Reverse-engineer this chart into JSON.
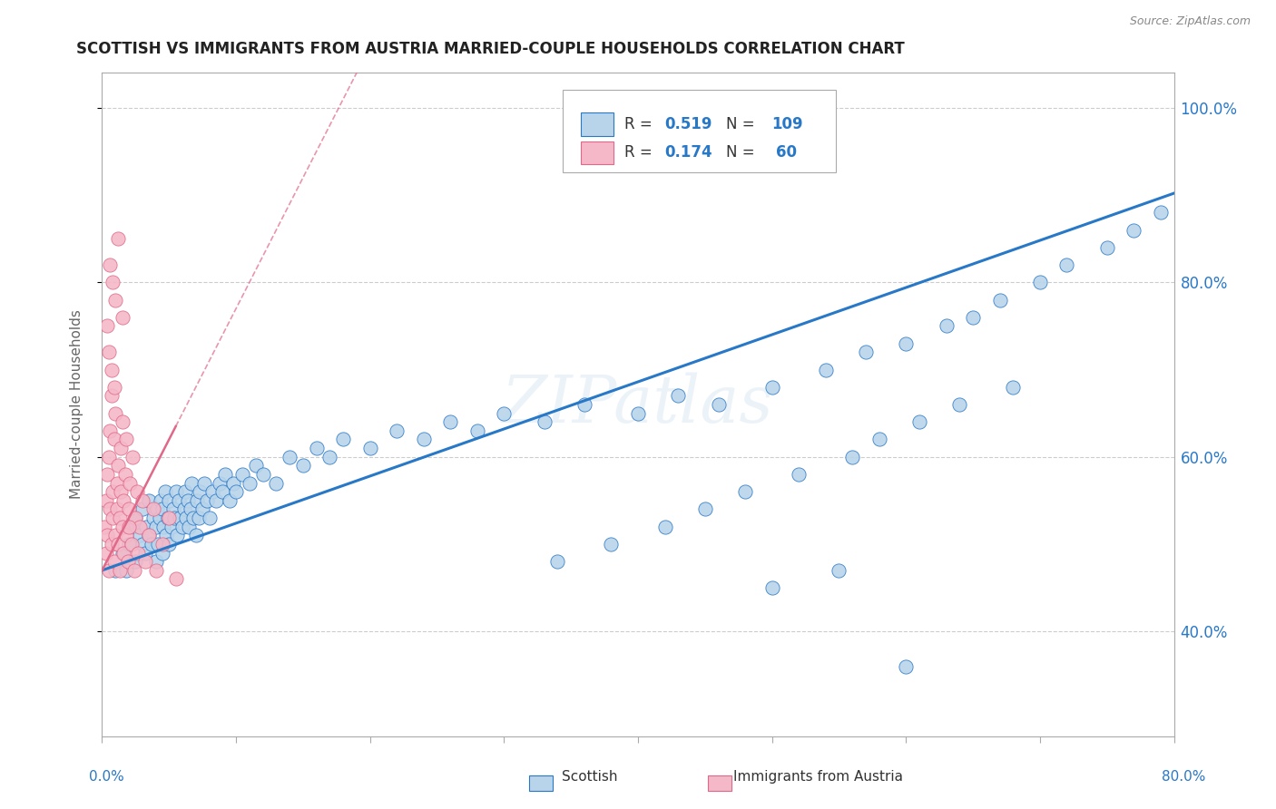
{
  "title": "SCOTTISH VS IMMIGRANTS FROM AUSTRIA MARRIED-COUPLE HOUSEHOLDS CORRELATION CHART",
  "source": "Source: ZipAtlas.com",
  "ylabel": "Married-couple Households",
  "watermark": "ZIPatlas",
  "scatter_blue_color": "#b8d4ea",
  "scatter_pink_color": "#f4b8c8",
  "line_blue_color": "#2878c8",
  "line_pink_color": "#e06888",
  "background_color": "#ffffff",
  "xlim": [
    0.0,
    0.8
  ],
  "ylim": [
    0.28,
    1.04
  ],
  "ytick_vals": [
    0.4,
    0.6,
    0.8,
    1.0
  ],
  "blue_scatter_x": [
    0.01,
    0.015,
    0.018,
    0.02,
    0.022,
    0.025,
    0.025,
    0.028,
    0.03,
    0.03,
    0.032,
    0.033,
    0.035,
    0.035,
    0.037,
    0.038,
    0.04,
    0.04,
    0.041,
    0.042,
    0.043,
    0.044,
    0.045,
    0.045,
    0.046,
    0.047,
    0.048,
    0.049,
    0.05,
    0.05,
    0.052,
    0.053,
    0.054,
    0.055,
    0.056,
    0.057,
    0.058,
    0.06,
    0.061,
    0.062,
    0.063,
    0.064,
    0.065,
    0.066,
    0.067,
    0.068,
    0.07,
    0.071,
    0.072,
    0.073,
    0.075,
    0.076,
    0.078,
    0.08,
    0.082,
    0.085,
    0.088,
    0.09,
    0.092,
    0.095,
    0.098,
    0.1,
    0.105,
    0.11,
    0.115,
    0.12,
    0.13,
    0.14,
    0.15,
    0.16,
    0.17,
    0.18,
    0.2,
    0.22,
    0.24,
    0.26,
    0.28,
    0.3,
    0.33,
    0.36,
    0.4,
    0.43,
    0.46,
    0.5,
    0.54,
    0.57,
    0.6,
    0.63,
    0.65,
    0.67,
    0.34,
    0.38,
    0.42,
    0.45,
    0.48,
    0.52,
    0.56,
    0.58,
    0.61,
    0.64,
    0.68,
    0.7,
    0.72,
    0.75,
    0.77,
    0.79,
    0.5,
    0.55,
    0.6
  ],
  "blue_scatter_y": [
    0.47,
    0.49,
    0.47,
    0.5,
    0.52,
    0.48,
    0.53,
    0.51,
    0.5,
    0.54,
    0.49,
    0.52,
    0.51,
    0.55,
    0.5,
    0.53,
    0.48,
    0.52,
    0.54,
    0.5,
    0.53,
    0.55,
    0.49,
    0.54,
    0.52,
    0.56,
    0.51,
    0.53,
    0.5,
    0.55,
    0.52,
    0.54,
    0.53,
    0.56,
    0.51,
    0.55,
    0.53,
    0.52,
    0.54,
    0.56,
    0.53,
    0.55,
    0.52,
    0.54,
    0.57,
    0.53,
    0.51,
    0.55,
    0.53,
    0.56,
    0.54,
    0.57,
    0.55,
    0.53,
    0.56,
    0.55,
    0.57,
    0.56,
    0.58,
    0.55,
    0.57,
    0.56,
    0.58,
    0.57,
    0.59,
    0.58,
    0.57,
    0.6,
    0.59,
    0.61,
    0.6,
    0.62,
    0.61,
    0.63,
    0.62,
    0.64,
    0.63,
    0.65,
    0.64,
    0.66,
    0.65,
    0.67,
    0.66,
    0.68,
    0.7,
    0.72,
    0.73,
    0.75,
    0.76,
    0.78,
    0.48,
    0.5,
    0.52,
    0.54,
    0.56,
    0.58,
    0.6,
    0.62,
    0.64,
    0.66,
    0.68,
    0.8,
    0.82,
    0.84,
    0.86,
    0.88,
    0.45,
    0.47,
    0.36
  ],
  "pink_scatter_x": [
    0.002,
    0.003,
    0.003,
    0.004,
    0.004,
    0.005,
    0.005,
    0.006,
    0.006,
    0.007,
    0.007,
    0.008,
    0.008,
    0.009,
    0.009,
    0.01,
    0.01,
    0.011,
    0.011,
    0.012,
    0.012,
    0.013,
    0.013,
    0.014,
    0.014,
    0.015,
    0.015,
    0.016,
    0.016,
    0.017,
    0.018,
    0.018,
    0.019,
    0.02,
    0.021,
    0.022,
    0.023,
    0.024,
    0.025,
    0.026,
    0.027,
    0.028,
    0.03,
    0.032,
    0.035,
    0.038,
    0.04,
    0.045,
    0.05,
    0.055,
    0.004,
    0.005,
    0.006,
    0.007,
    0.008,
    0.009,
    0.01,
    0.012,
    0.015,
    0.02
  ],
  "pink_scatter_y": [
    0.52,
    0.49,
    0.55,
    0.51,
    0.58,
    0.47,
    0.6,
    0.54,
    0.63,
    0.5,
    0.67,
    0.53,
    0.56,
    0.48,
    0.62,
    0.51,
    0.65,
    0.54,
    0.57,
    0.5,
    0.59,
    0.53,
    0.47,
    0.56,
    0.61,
    0.52,
    0.64,
    0.49,
    0.55,
    0.58,
    0.51,
    0.62,
    0.48,
    0.54,
    0.57,
    0.5,
    0.6,
    0.47,
    0.53,
    0.56,
    0.49,
    0.52,
    0.55,
    0.48,
    0.51,
    0.54,
    0.47,
    0.5,
    0.53,
    0.46,
    0.75,
    0.72,
    0.82,
    0.7,
    0.8,
    0.68,
    0.78,
    0.85,
    0.76,
    0.52
  ]
}
